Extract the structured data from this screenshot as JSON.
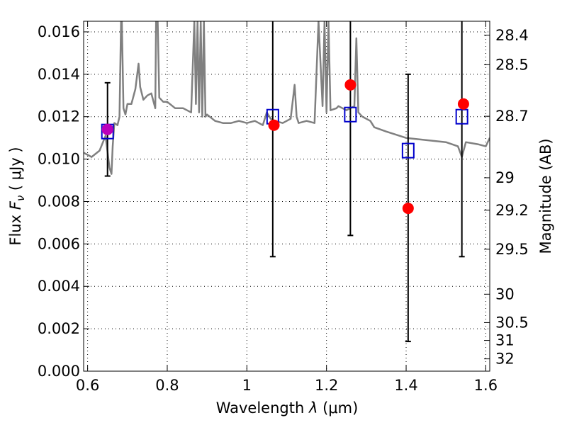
{
  "chart_data": {
    "type": "scatter",
    "xlabel_prefix": "Wavelength",
    "xlabel_symbol": "λ",
    "xlabel_unit": "(μm)",
    "ylabel_prefix": "Flux",
    "ylabel_symbol": "F",
    "ylabel_subscript": "ν",
    "ylabel_unit": "( μJy )",
    "y2label": "Magnitude (AB)",
    "xlim": [
      0.59,
      1.61
    ],
    "ylim": [
      0.0,
      0.0165
    ],
    "xticks": [
      0.6,
      0.8,
      1.0,
      1.2,
      1.4,
      1.6
    ],
    "xtick_labels": [
      "0.6",
      "0.8",
      "1",
      "1.2",
      "1.4",
      "1.6"
    ],
    "yticks": [
      0.0,
      0.002,
      0.004,
      0.006,
      0.008,
      0.01,
      0.012,
      0.014,
      0.016
    ],
    "ytick_labels": [
      "0.000",
      "0.002",
      "0.004",
      "0.006",
      "0.008",
      "0.010",
      "0.012",
      "0.014",
      "0.016"
    ],
    "y2ticks": [
      {
        "label": "28.4",
        "flux": 0.01584
      },
      {
        "label": "28.5",
        "flux": 0.01445
      },
      {
        "label": "28.7",
        "flux": 0.01202
      },
      {
        "label": "29",
        "flux": 0.00912
      },
      {
        "label": "29.2",
        "flux": 0.00759
      },
      {
        "label": "29.5",
        "flux": 0.00575
      },
      {
        "label": "30",
        "flux": 0.00363
      },
      {
        "label": "30.5",
        "flux": 0.00229
      },
      {
        "label": "31",
        "flux": 0.00145
      },
      {
        "label": "32",
        "flux": 0.00058
      }
    ],
    "grid": true,
    "series": [
      {
        "kind": "model_spectrum",
        "color": "#808080",
        "x": [
          0.59,
          0.61,
          0.63,
          0.645,
          0.655,
          0.66,
          0.663,
          0.667,
          0.675,
          0.68,
          0.684,
          0.686,
          0.69,
          0.695,
          0.7,
          0.71,
          0.72,
          0.728,
          0.732,
          0.74,
          0.75,
          0.76,
          0.77,
          0.772,
          0.776,
          0.78,
          0.79,
          0.8,
          0.82,
          0.84,
          0.86,
          0.868,
          0.872,
          0.876,
          0.88,
          0.884,
          0.888,
          0.892,
          0.896,
          0.9,
          0.92,
          0.94,
          0.96,
          0.98,
          1.0,
          1.02,
          1.04,
          1.05,
          1.06,
          1.07,
          1.09,
          1.11,
          1.12,
          1.125,
          1.13,
          1.15,
          1.17,
          1.18,
          1.19,
          1.195,
          1.2,
          1.205,
          1.21,
          1.225,
          1.23,
          1.25,
          1.27,
          1.275,
          1.28,
          1.29,
          1.31,
          1.32,
          1.35,
          1.4,
          1.45,
          1.5,
          1.53,
          1.54,
          1.55,
          1.58,
          1.6,
          1.61
        ],
        "y": [
          0.0103,
          0.0101,
          0.0104,
          0.0111,
          0.0096,
          0.0093,
          0.0106,
          0.0117,
          0.0116,
          0.012,
          0.0165,
          0.0165,
          0.0124,
          0.0121,
          0.0126,
          0.0126,
          0.0133,
          0.0145,
          0.0134,
          0.0128,
          0.013,
          0.0131,
          0.0124,
          0.0165,
          0.0165,
          0.0129,
          0.0127,
          0.0127,
          0.0124,
          0.0124,
          0.0122,
          0.0165,
          0.0126,
          0.0165,
          0.0122,
          0.0165,
          0.012,
          0.0165,
          0.012,
          0.0121,
          0.0118,
          0.0117,
          0.0117,
          0.0118,
          0.0117,
          0.0118,
          0.0116,
          0.0122,
          0.0119,
          0.0118,
          0.0117,
          0.0119,
          0.0135,
          0.012,
          0.0117,
          0.0118,
          0.0117,
          0.0165,
          0.0125,
          0.0165,
          0.0122,
          0.0165,
          0.0123,
          0.0124,
          0.0125,
          0.0123,
          0.0125,
          0.0157,
          0.0122,
          0.012,
          0.0118,
          0.0115,
          0.0113,
          0.011,
          0.0109,
          0.0108,
          0.0106,
          0.0101,
          0.0108,
          0.0107,
          0.0106,
          0.011
        ]
      },
      {
        "kind": "model_photometry",
        "marker": "open-square",
        "color": "#0000cc",
        "x": [
          0.65,
          1.065,
          1.26,
          1.405,
          1.54
        ],
        "y": [
          0.0113,
          0.012,
          0.0121,
          0.0104,
          0.012
        ]
      },
      {
        "kind": "observed_photometry",
        "marker": "filled-circle",
        "color": "#ff0000",
        "x": [
          0.65,
          1.068,
          1.26,
          1.405,
          1.544
        ],
        "y": [
          0.0114,
          0.0116,
          0.0135,
          0.00768,
          0.0126
        ]
      },
      {
        "kind": "error_bars",
        "color": "#000000",
        "x": [
          0.65,
          1.065,
          1.26,
          1.405,
          1.54
        ],
        "y_low": [
          0.0092,
          0.0054,
          0.0064,
          0.0014,
          0.0054
        ],
        "y_high": [
          0.0136,
          0.0165,
          0.0165,
          0.014,
          0.0165
        ]
      }
    ],
    "highlight_point": {
      "x": 0.65,
      "y": 0.0114,
      "color": "#bb00bb"
    }
  }
}
